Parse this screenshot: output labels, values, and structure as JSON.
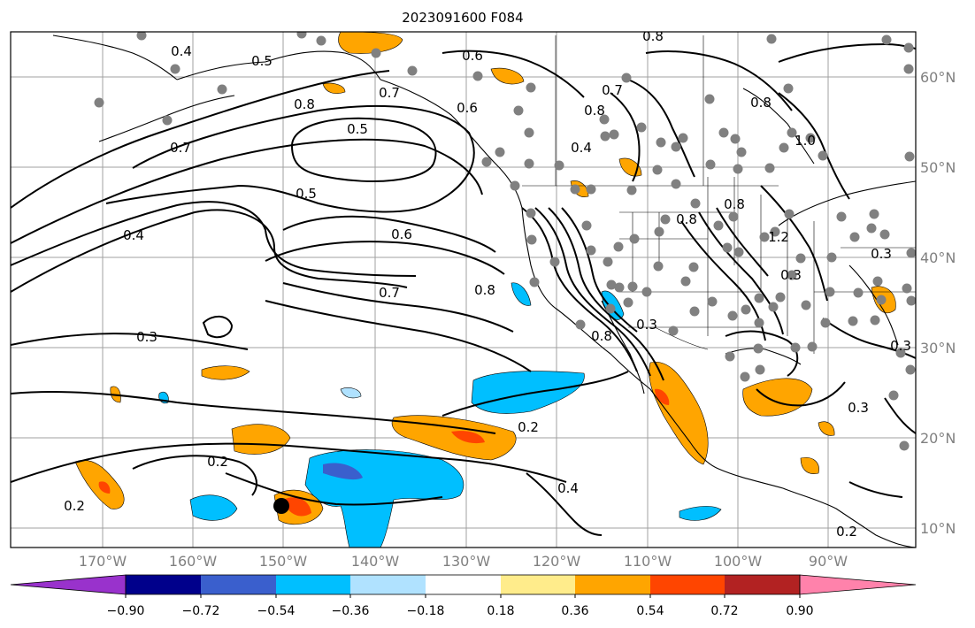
{
  "title": "2023091600 F084",
  "map": {
    "lon_labels": [
      "170°W",
      "160°W",
      "150°W",
      "140°W",
      "130°W",
      "120°W",
      "110°W",
      "100°W",
      "90°W"
    ],
    "lat_labels": [
      "60°N",
      "50°N",
      "40°N",
      "30°N",
      "20°N",
      "10°N"
    ],
    "contour_labels": [
      "0.8",
      "0.5",
      "0.4",
      "0.6",
      "0.7",
      "0.8",
      "0.5",
      "0.6",
      "0.7",
      "0.8",
      "0.8",
      "1.0",
      "0.4",
      "0.7",
      "0.5",
      "0.4",
      "0.6",
      "0.7",
      "0.8",
      "0.8",
      "0.8",
      "1.2",
      "0.3",
      "0.3",
      "0.3",
      "0.3",
      "0.8",
      "0.2",
      "0.4",
      "0.2",
      "0.2",
      "0.3",
      "0.3",
      "0.2"
    ],
    "colors": {
      "contour": "#000000",
      "station_dot": "#808080",
      "tc_marker": "#000000",
      "coast": "#000000",
      "grid": "#a0a0a0"
    }
  },
  "colorbar": {
    "tick_labels": [
      "−0.90",
      "−0.72",
      "−0.54",
      "−0.36",
      "−0.18",
      "0.18",
      "0.36",
      "0.54",
      "0.72",
      "0.90"
    ],
    "bins": [
      {
        "color": "#9932cc"
      },
      {
        "color": "#00008b"
      },
      {
        "color": "#3a5fcd"
      },
      {
        "color": "#00bfff"
      },
      {
        "color": "#b0e2ff"
      },
      {
        "color": "#ffffff"
      },
      {
        "color": "#ffec8b"
      },
      {
        "color": "#ffa500"
      },
      {
        "color": "#ff4500"
      },
      {
        "color": "#b22222"
      },
      {
        "color": "#ff82ab"
      }
    ]
  }
}
